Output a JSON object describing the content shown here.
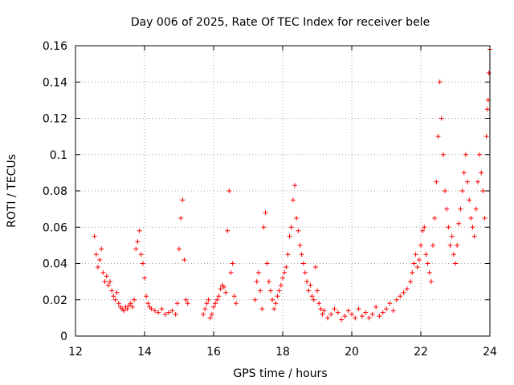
{
  "chart_data": {
    "type": "scatter",
    "title": "Day 006 of 2025, Rate Of TEC Index for receiver bele",
    "xlabel": "GPS time / hours",
    "ylabel": "ROTI / TECUs",
    "xlim": [
      12,
      24
    ],
    "ylim": [
      0,
      0.16
    ],
    "xticks": [
      "12",
      "14",
      "16",
      "18",
      "20",
      "22",
      "24"
    ],
    "yticks": [
      "0",
      "0.02",
      "0.04",
      "0.06",
      "0.08",
      "0.1",
      "0.12",
      "0.14",
      "0.16"
    ],
    "grid": true,
    "marker": "+",
    "color": "#ff0000",
    "series": [
      {
        "name": "ROTI",
        "points": [
          [
            12.55,
            0.055
          ],
          [
            12.6,
            0.045
          ],
          [
            12.65,
            0.038
          ],
          [
            12.7,
            0.042
          ],
          [
            12.75,
            0.048
          ],
          [
            12.8,
            0.035
          ],
          [
            12.85,
            0.03
          ],
          [
            12.9,
            0.033
          ],
          [
            12.95,
            0.028
          ],
          [
            13.0,
            0.03
          ],
          [
            13.05,
            0.025
          ],
          [
            13.1,
            0.022
          ],
          [
            13.15,
            0.02
          ],
          [
            13.2,
            0.024
          ],
          [
            13.25,
            0.018
          ],
          [
            13.3,
            0.016
          ],
          [
            13.35,
            0.015
          ],
          [
            13.4,
            0.014
          ],
          [
            13.45,
            0.016
          ],
          [
            13.5,
            0.015
          ],
          [
            13.55,
            0.017
          ],
          [
            13.6,
            0.018
          ],
          [
            13.65,
            0.016
          ],
          [
            13.7,
            0.02
          ],
          [
            13.75,
            0.048
          ],
          [
            13.8,
            0.052
          ],
          [
            13.85,
            0.058
          ],
          [
            13.9,
            0.045
          ],
          [
            13.95,
            0.04
          ],
          [
            14.0,
            0.032
          ],
          [
            14.05,
            0.022
          ],
          [
            14.1,
            0.018
          ],
          [
            14.15,
            0.016
          ],
          [
            14.2,
            0.015
          ],
          [
            14.3,
            0.014
          ],
          [
            14.4,
            0.013
          ],
          [
            14.5,
            0.015
          ],
          [
            14.6,
            0.012
          ],
          [
            14.7,
            0.013
          ],
          [
            14.8,
            0.014
          ],
          [
            14.9,
            0.012
          ],
          [
            14.95,
            0.018
          ],
          [
            15.0,
            0.048
          ],
          [
            15.05,
            0.065
          ],
          [
            15.1,
            0.075
          ],
          [
            15.15,
            0.042
          ],
          [
            15.2,
            0.02
          ],
          [
            15.25,
            0.018
          ],
          [
            15.7,
            0.012
          ],
          [
            15.75,
            0.015
          ],
          [
            15.8,
            0.018
          ],
          [
            15.85,
            0.02
          ],
          [
            15.9,
            0.01
          ],
          [
            15.95,
            0.012
          ],
          [
            16.0,
            0.016
          ],
          [
            16.05,
            0.018
          ],
          [
            16.1,
            0.02
          ],
          [
            16.15,
            0.022
          ],
          [
            16.2,
            0.026
          ],
          [
            16.25,
            0.028
          ],
          [
            16.3,
            0.027
          ],
          [
            16.35,
            0.024
          ],
          [
            16.4,
            0.058
          ],
          [
            16.45,
            0.08
          ],
          [
            16.5,
            0.035
          ],
          [
            16.55,
            0.04
          ],
          [
            16.6,
            0.022
          ],
          [
            16.65,
            0.018
          ],
          [
            17.2,
            0.02
          ],
          [
            17.25,
            0.03
          ],
          [
            17.3,
            0.035
          ],
          [
            17.35,
            0.025
          ],
          [
            17.4,
            0.015
          ],
          [
            17.45,
            0.06
          ],
          [
            17.5,
            0.068
          ],
          [
            17.55,
            0.04
          ],
          [
            17.6,
            0.03
          ],
          [
            17.65,
            0.025
          ],
          [
            17.7,
            0.02
          ],
          [
            17.75,
            0.015
          ],
          [
            17.8,
            0.018
          ],
          [
            17.85,
            0.022
          ],
          [
            17.9,
            0.025
          ],
          [
            17.95,
            0.028
          ],
          [
            18.0,
            0.032
          ],
          [
            18.05,
            0.035
          ],
          [
            18.1,
            0.038
          ],
          [
            18.15,
            0.045
          ],
          [
            18.2,
            0.055
          ],
          [
            18.25,
            0.06
          ],
          [
            18.3,
            0.075
          ],
          [
            18.35,
            0.083
          ],
          [
            18.4,
            0.065
          ],
          [
            18.45,
            0.058
          ],
          [
            18.5,
            0.05
          ],
          [
            18.55,
            0.045
          ],
          [
            18.6,
            0.04
          ],
          [
            18.65,
            0.035
          ],
          [
            18.7,
            0.03
          ],
          [
            18.75,
            0.025
          ],
          [
            18.8,
            0.028
          ],
          [
            18.85,
            0.022
          ],
          [
            18.9,
            0.02
          ],
          [
            18.95,
            0.038
          ],
          [
            19.0,
            0.025
          ],
          [
            19.05,
            0.018
          ],
          [
            19.1,
            0.015
          ],
          [
            19.15,
            0.012
          ],
          [
            19.2,
            0.014
          ],
          [
            19.3,
            0.01
          ],
          [
            19.4,
            0.012
          ],
          [
            19.5,
            0.015
          ],
          [
            19.6,
            0.013
          ],
          [
            19.7,
            0.009
          ],
          [
            19.8,
            0.011
          ],
          [
            19.9,
            0.014
          ],
          [
            20.0,
            0.012
          ],
          [
            20.1,
            0.01
          ],
          [
            20.2,
            0.015
          ],
          [
            20.3,
            0.011
          ],
          [
            20.4,
            0.013
          ],
          [
            20.5,
            0.01
          ],
          [
            20.6,
            0.012
          ],
          [
            20.7,
            0.016
          ],
          [
            20.8,
            0.011
          ],
          [
            20.9,
            0.013
          ],
          [
            21.0,
            0.015
          ],
          [
            21.1,
            0.018
          ],
          [
            21.2,
            0.014
          ],
          [
            21.3,
            0.02
          ],
          [
            21.4,
            0.022
          ],
          [
            21.5,
            0.024
          ],
          [
            21.6,
            0.026
          ],
          [
            21.7,
            0.03
          ],
          [
            21.75,
            0.035
          ],
          [
            21.8,
            0.04
          ],
          [
            21.85,
            0.045
          ],
          [
            21.9,
            0.038
          ],
          [
            21.95,
            0.042
          ],
          [
            22.0,
            0.05
          ],
          [
            22.05,
            0.058
          ],
          [
            22.1,
            0.06
          ],
          [
            22.15,
            0.045
          ],
          [
            22.2,
            0.04
          ],
          [
            22.25,
            0.035
          ],
          [
            22.3,
            0.03
          ],
          [
            22.35,
            0.05
          ],
          [
            22.4,
            0.065
          ],
          [
            22.45,
            0.085
          ],
          [
            22.5,
            0.11
          ],
          [
            22.55,
            0.14
          ],
          [
            22.6,
            0.12
          ],
          [
            22.65,
            0.1
          ],
          [
            22.7,
            0.08
          ],
          [
            22.75,
            0.07
          ],
          [
            22.8,
            0.06
          ],
          [
            22.85,
            0.05
          ],
          [
            22.9,
            0.055
          ],
          [
            22.95,
            0.045
          ],
          [
            23.0,
            0.04
          ],
          [
            23.05,
            0.05
          ],
          [
            23.1,
            0.062
          ],
          [
            23.15,
            0.07
          ],
          [
            23.2,
            0.08
          ],
          [
            23.25,
            0.09
          ],
          [
            23.3,
            0.1
          ],
          [
            23.35,
            0.085
          ],
          [
            23.4,
            0.075
          ],
          [
            23.45,
            0.065
          ],
          [
            23.5,
            0.06
          ],
          [
            23.55,
            0.055
          ],
          [
            23.6,
            0.07
          ],
          [
            23.65,
            0.085
          ],
          [
            23.7,
            0.1
          ],
          [
            23.75,
            0.09
          ],
          [
            23.8,
            0.08
          ],
          [
            23.85,
            0.065
          ],
          [
            23.9,
            0.11
          ],
          [
            23.93,
            0.125
          ],
          [
            23.95,
            0.13
          ],
          [
            23.97,
            0.145
          ],
          [
            24.0,
            0.158
          ]
        ]
      }
    ]
  }
}
